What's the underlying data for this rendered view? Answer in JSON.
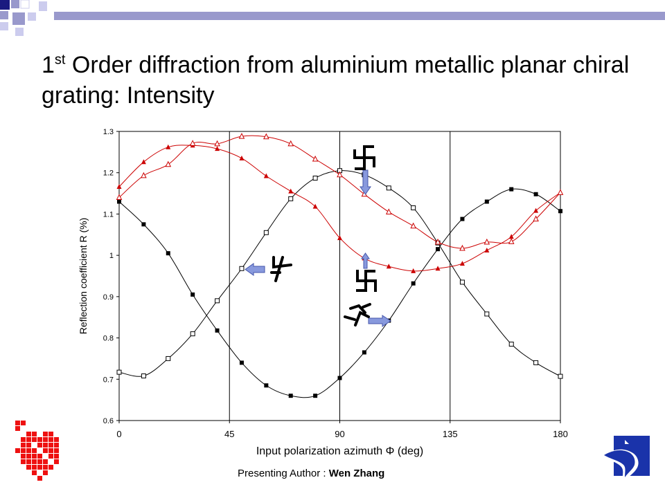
{
  "title": {
    "prefix": "1",
    "sup": "st",
    "rest": " Order diffraction from aluminium metallic planar chiral grating: Intensity"
  },
  "footer": {
    "label": "Presenting Author : ",
    "name": "Wen Zhang"
  },
  "chart_data": {
    "type": "line",
    "xlabel": "Input polarization azimuth Φ (deg)",
    "ylabel": "Reflection coefficient R (%)",
    "xlim": [
      0,
      180
    ],
    "ylim": [
      0.6,
      1.3
    ],
    "xticks": [
      0,
      45,
      90,
      135,
      180
    ],
    "yticks": [
      0.6,
      0.7,
      0.8,
      0.9,
      1,
      1.1,
      1.2,
      1.3
    ],
    "ytick_labels": [
      "0.6",
      "0.7",
      "0.8",
      "0.9",
      "1",
      "1.1",
      "1.2",
      "1.3"
    ],
    "vertical_lines": [
      45,
      90,
      135
    ],
    "grid": false,
    "x": [
      0,
      10,
      20,
      30,
      40,
      50,
      60,
      70,
      80,
      90,
      100,
      110,
      120,
      130,
      140,
      150,
      160,
      170,
      180
    ],
    "series": [
      {
        "marker": "filled-square",
        "color": "#000000",
        "values": [
          1.13,
          1.075,
          1.005,
          0.905,
          0.818,
          0.74,
          0.685,
          0.66,
          0.66,
          0.703,
          0.765,
          0.842,
          0.932,
          1.015,
          1.088,
          1.13,
          1.16,
          1.148,
          1.107
        ]
      },
      {
        "marker": "open-square",
        "color": "#000000",
        "values": [
          0.717,
          0.708,
          0.75,
          0.81,
          0.89,
          0.968,
          1.055,
          1.137,
          1.187,
          1.205,
          1.195,
          1.163,
          1.115,
          1.03,
          0.935,
          0.858,
          0.785,
          0.74,
          0.707
        ]
      },
      {
        "marker": "filled-triangle",
        "color": "#cc0000",
        "values": [
          1.166,
          1.226,
          1.262,
          1.266,
          1.258,
          1.235,
          1.192,
          1.155,
          1.118,
          1.042,
          0.993,
          0.973,
          0.962,
          0.968,
          0.98,
          1.012,
          1.045,
          1.108,
          1.152
        ]
      },
      {
        "marker": "open-triangle",
        "color": "#cc0000",
        "values": [
          1.14,
          1.193,
          1.22,
          1.271,
          1.27,
          1.288,
          1.287,
          1.27,
          1.233,
          1.195,
          1.148,
          1.105,
          1.071,
          1.032,
          1.017,
          1.032,
          1.033,
          1.088,
          1.152
        ]
      }
    ]
  },
  "colors": {
    "top_bar": "#9999cc",
    "arrow_fill": "#8899dd",
    "arrow_stroke": "#4455aa",
    "logo_red": "#ee1111",
    "logo_blue": "#1a33aa"
  },
  "icons": [
    "chiral-symbol-cw-icon",
    "chiral-symbol-ccw-icon",
    "chiral-symbol-left-icon",
    "chiral-symbol-tilted-icon",
    "arrow-down-icon",
    "arrow-up-icon",
    "arrow-left-icon",
    "arrow-right-icon"
  ]
}
